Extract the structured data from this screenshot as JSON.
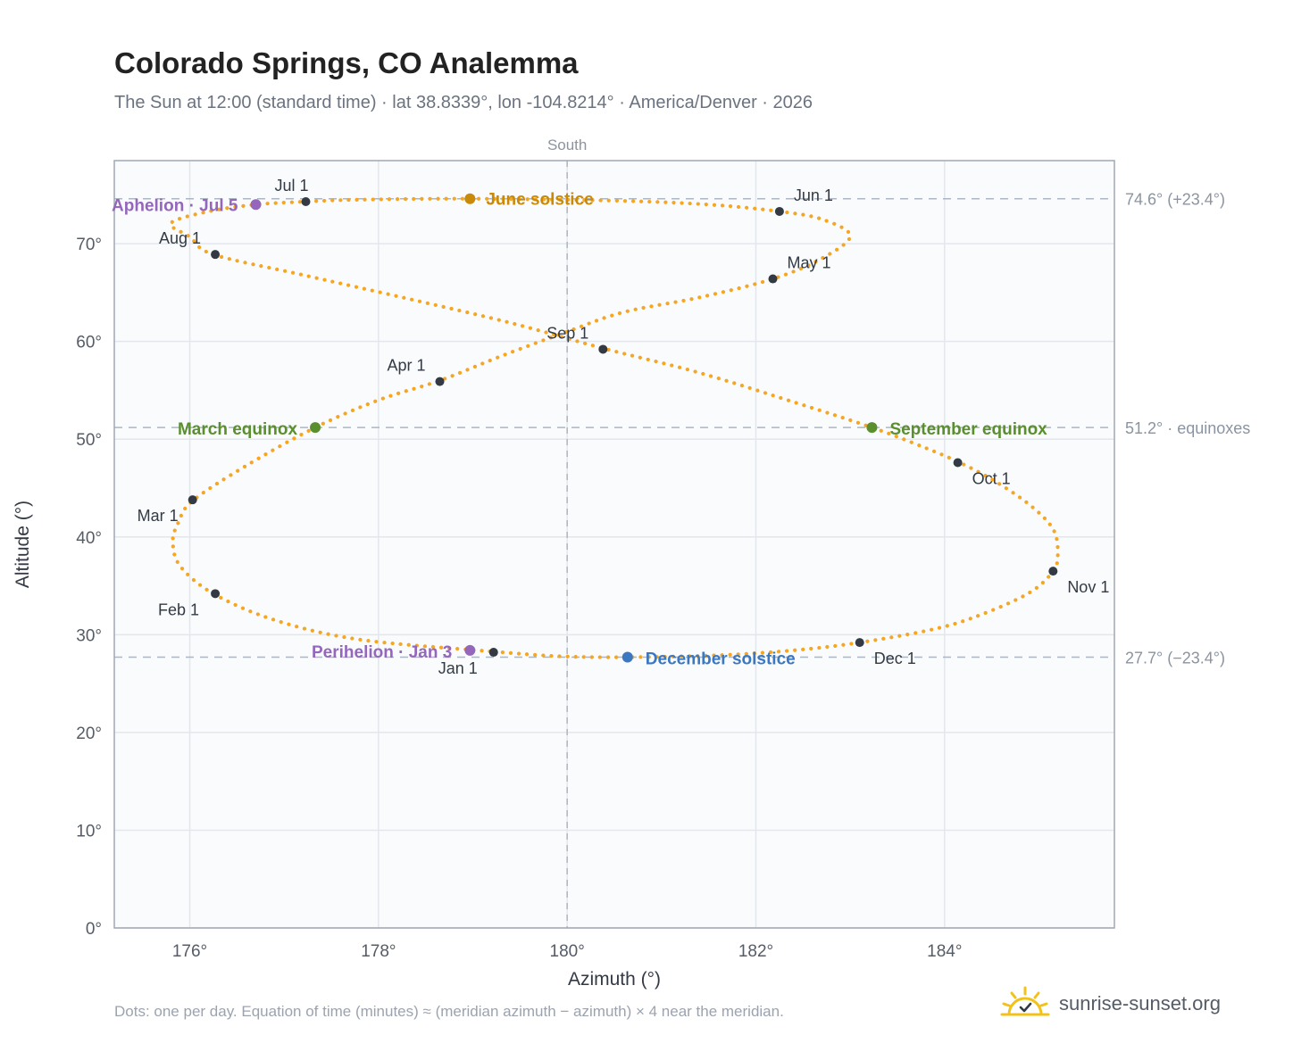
{
  "title": "Colorado Springs, CO Analemma",
  "subtitle": "The Sun at 12:00 (standard time) · lat 38.8339°, lon -104.8214° · America/Denver · 2026",
  "footnote": "Dots: one per day. Equation of time (minutes) ≈ (meridian azimuth − azimuth) × 4 near the meridian.",
  "brand": {
    "name": "sunrise-sunset.org",
    "icon": "sun-logo-icon"
  },
  "colors": {
    "path": "#f5a623",
    "month_marker": "#333a44",
    "solstice_june": "#c98a0a",
    "solstice_december": "#3a78c2",
    "equinox": "#5a8f2e",
    "aphelion_perihelion": "#9467bd",
    "reference_line": "#aeb6c1",
    "grid": "#e3e7ec",
    "plot_bg": "#f9fbfd",
    "frame": "#a0a8b5"
  },
  "chart_data": {
    "type": "scatter",
    "xlabel": "Azimuth (°)",
    "ylabel": "Altitude (°)",
    "xlim": [
      175.2,
      185.8
    ],
    "ylim": [
      0,
      78.5
    ],
    "xticks": [
      176,
      178,
      180,
      182,
      184
    ],
    "xtick_labels": [
      "176°",
      "178°",
      "180°",
      "182°",
      "184°"
    ],
    "yticks": [
      0,
      10,
      20,
      30,
      40,
      50,
      60,
      70
    ],
    "ytick_labels": [
      "0°",
      "10°",
      "20°",
      "30°",
      "40°",
      "50°",
      "60°",
      "70°"
    ],
    "grid": true,
    "meridian": {
      "x": 180,
      "label": "South"
    },
    "reference_lines": [
      {
        "y": 74.6,
        "label": "74.6° (+23.4°)"
      },
      {
        "y": 51.2,
        "label": "51.2° · equinoxes"
      },
      {
        "y": 27.7,
        "label": "27.7° (−23.4°)"
      }
    ],
    "path_points": [
      [
        179.18,
        28.3
      ],
      [
        177.8,
        29.5
      ],
      [
        176.9,
        31.5
      ],
      [
        176.25,
        34.2
      ],
      [
        175.9,
        37.0
      ],
      [
        175.82,
        39.5
      ],
      [
        175.88,
        41.5
      ],
      [
        176.03,
        43.7
      ],
      [
        176.6,
        47.3
      ],
      [
        177.33,
        51.2
      ],
      [
        178.0,
        54.0
      ],
      [
        178.65,
        56.0
      ],
      [
        179.3,
        58.5
      ],
      [
        180.0,
        61.0
      ],
      [
        180.6,
        63.0
      ],
      [
        181.4,
        64.5
      ],
      [
        182.18,
        66.4
      ],
      [
        182.7,
        68.5
      ],
      [
        183.0,
        70.8
      ],
      [
        182.7,
        72.5
      ],
      [
        182.25,
        73.3
      ],
      [
        181.5,
        74.0
      ],
      [
        180.5,
        74.4
      ],
      [
        178.97,
        74.6
      ],
      [
        177.8,
        74.5
      ],
      [
        177.22,
        74.3
      ],
      [
        176.7,
        74.0
      ],
      [
        176.2,
        73.3
      ],
      [
        175.8,
        72.1
      ],
      [
        176.0,
        70.7
      ],
      [
        176.25,
        68.9
      ],
      [
        177.2,
        66.8
      ],
      [
        178.3,
        64.4
      ],
      [
        179.4,
        61.9
      ],
      [
        180.38,
        59.3
      ],
      [
        181.4,
        56.8
      ],
      [
        182.4,
        53.8
      ],
      [
        183.23,
        51.2
      ],
      [
        183.8,
        49.1
      ],
      [
        184.14,
        47.7
      ],
      [
        184.5,
        45.9
      ],
      [
        184.9,
        43.3
      ],
      [
        185.15,
        40.8
      ],
      [
        185.2,
        38.3
      ],
      [
        185.15,
        36.5
      ],
      [
        184.9,
        34.3
      ],
      [
        184.4,
        32.1
      ],
      [
        183.9,
        30.6
      ],
      [
        183.1,
        29.2
      ],
      [
        182.4,
        28.4
      ],
      [
        181.6,
        27.9
      ],
      [
        180.64,
        27.7
      ],
      [
        179.9,
        27.8
      ],
      [
        179.18,
        28.3
      ]
    ],
    "month_markers": [
      {
        "label": "Jan 1",
        "x": 179.22,
        "y": 28.2
      },
      {
        "label": "Feb 1",
        "x": 176.27,
        "y": 34.2
      },
      {
        "label": "Mar 1",
        "x": 176.03,
        "y": 43.8
      },
      {
        "label": "Apr 1",
        "x": 178.65,
        "y": 55.9
      },
      {
        "label": "May 1",
        "x": 182.18,
        "y": 66.4
      },
      {
        "label": "Jun 1",
        "x": 182.25,
        "y": 73.3
      },
      {
        "label": "Jul 1",
        "x": 177.23,
        "y": 74.3
      },
      {
        "label": "Aug 1",
        "x": 176.27,
        "y": 68.9
      },
      {
        "label": "Sep 1",
        "x": 180.38,
        "y": 59.2
      },
      {
        "label": "Oct 1",
        "x": 184.14,
        "y": 47.6
      },
      {
        "label": "Nov 1",
        "x": 185.15,
        "y": 36.5
      },
      {
        "label": "Dec 1",
        "x": 183.1,
        "y": 29.2
      }
    ],
    "events": [
      {
        "label": "June solstice",
        "x": 178.97,
        "y": 74.6,
        "kind": "solstice_june"
      },
      {
        "label": "December solstice",
        "x": 180.64,
        "y": 27.7,
        "kind": "solstice_december"
      },
      {
        "label": "March equinox",
        "x": 177.33,
        "y": 51.2,
        "kind": "equinox"
      },
      {
        "label": "September equinox",
        "x": 183.23,
        "y": 51.2,
        "kind": "equinox"
      },
      {
        "label": "Aphelion · Jul 5",
        "x": 176.7,
        "y": 74.0,
        "kind": "aphelion_perihelion"
      },
      {
        "label": "Perihelion · Jan 3",
        "x": 178.97,
        "y": 28.4,
        "kind": "aphelion_perihelion"
      }
    ]
  }
}
